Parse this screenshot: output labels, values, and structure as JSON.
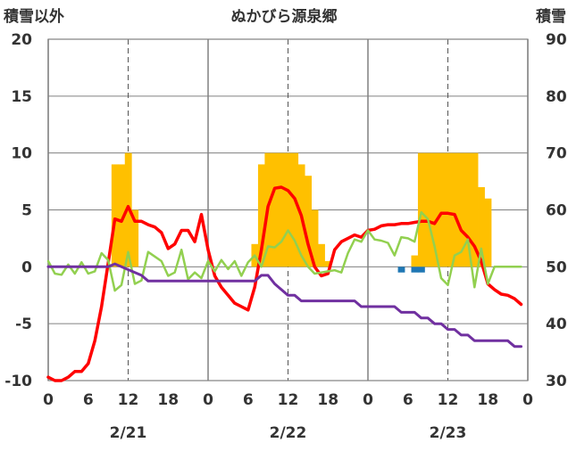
{
  "chart_data": {
    "type": "line",
    "title": "ぬかびら源泉郷",
    "ylabel_left": "積雪以外",
    "ylabel_right": "積雪",
    "ylim_left": [
      -10,
      20
    ],
    "ylim_right": [
      30,
      90
    ],
    "yticks_left": [
      "20",
      "15",
      "10",
      "5",
      "0",
      "-5",
      "-10"
    ],
    "yticks_right": [
      "90",
      "80",
      "70",
      "60",
      "50",
      "40",
      "30"
    ],
    "xlim_hours": [
      0,
      72
    ],
    "xtick_labels": [
      "0",
      "6",
      "12",
      "18",
      "0",
      "6",
      "12",
      "18",
      "0",
      "6",
      "12",
      "18",
      "0"
    ],
    "date_labels": [
      "2/21",
      "2/22",
      "2/23"
    ],
    "grid": true,
    "colors": {
      "snowfall": "#FFC000",
      "precip": "#1F77B4",
      "temperature": "#FF0000",
      "humidity_like": "#92D050",
      "snow_depth": "#7030A0",
      "grid_solid": "#808080",
      "grid_dashed": "#555555"
    },
    "series": [
      {
        "key": "snowfall",
        "type": "bar",
        "x": [
          10,
          11,
          12,
          13,
          31,
          32,
          33,
          34,
          35,
          36,
          37,
          38,
          39,
          40,
          41,
          42,
          55,
          56,
          57,
          58,
          59,
          60,
          61,
          62,
          63,
          64,
          65,
          66
        ],
        "values": [
          9,
          9,
          10,
          5,
          2,
          9,
          10,
          10,
          10,
          10,
          10,
          9,
          8,
          5,
          2,
          0.5,
          1,
          10,
          10,
          10,
          10,
          10,
          10,
          10,
          10,
          10,
          7,
          6
        ]
      },
      {
        "key": "precip",
        "type": "bar",
        "x": [
          53,
          55,
          56
        ],
        "values": [
          -0.5,
          -0.5,
          -0.5
        ]
      },
      {
        "key": "temperature",
        "type": "line",
        "x": [
          0,
          1,
          2,
          3,
          4,
          5,
          6,
          7,
          8,
          9,
          10,
          11,
          12,
          13,
          14,
          15,
          16,
          17,
          18,
          19,
          20,
          21,
          22,
          23,
          24,
          25,
          26,
          27,
          28,
          29,
          30,
          31,
          32,
          33,
          34,
          35,
          36,
          37,
          38,
          39,
          40,
          41,
          42,
          43,
          44,
          45,
          46,
          47,
          48,
          49,
          50,
          51,
          52,
          53,
          54,
          55,
          56,
          57,
          58,
          59,
          60,
          61,
          62,
          63,
          64,
          65,
          66,
          67,
          68,
          69,
          70,
          71
        ],
        "values": [
          -9.7,
          -10,
          -10,
          -9.7,
          -9.2,
          -9.2,
          -8.5,
          -6.5,
          -3.5,
          0.3,
          4.2,
          4,
          5.3,
          4,
          4,
          3.7,
          3.5,
          3,
          1.6,
          2,
          3.2,
          3.2,
          2.2,
          4.6,
          1.5,
          -0.8,
          -1.8,
          -2.5,
          -3.2,
          -3.5,
          -3.8,
          -1.8,
          1.5,
          5.3,
          6.9,
          7,
          6.7,
          6,
          4.5,
          2,
          0,
          -0.8,
          -0.6,
          1.5,
          2.2,
          2.5,
          2.8,
          2.6,
          3.2,
          3.3,
          3.6,
          3.7,
          3.7,
          3.8,
          3.8,
          3.9,
          4,
          4,
          3.8,
          4.7,
          4.7,
          4.6,
          3.2,
          2.6,
          1.8,
          0.5,
          -1.5,
          -2,
          -2.4,
          -2.5,
          -2.8,
          -3.3
        ]
      },
      {
        "key": "humidity_like",
        "type": "line",
        "x": [
          0,
          1,
          2,
          3,
          4,
          5,
          6,
          7,
          8,
          9,
          10,
          11,
          12,
          13,
          14,
          15,
          16,
          17,
          18,
          19,
          20,
          21,
          22,
          23,
          24,
          25,
          26,
          27,
          28,
          29,
          30,
          31,
          32,
          33,
          34,
          35,
          36,
          37,
          38,
          39,
          40,
          41,
          42,
          43,
          44,
          45,
          46,
          47,
          48,
          49,
          50,
          51,
          52,
          53,
          54,
          55,
          56,
          57,
          58,
          59,
          60,
          61,
          62,
          63,
          64,
          65,
          66,
          67,
          68,
          69,
          70,
          71
        ],
        "values": [
          0.5,
          -0.6,
          -0.7,
          0.2,
          -0.6,
          0.4,
          -0.6,
          -0.4,
          1.2,
          0.6,
          -2.1,
          -1.6,
          1.3,
          -1.5,
          -1.2,
          1.3,
          0.9,
          0.5,
          -0.8,
          -0.5,
          1.5,
          -1.1,
          -0.5,
          -1,
          0.5,
          -0.4,
          0.6,
          -0.2,
          0.5,
          -0.8,
          0.4,
          1,
          0,
          1.8,
          1.7,
          2.2,
          3.2,
          2.3,
          1,
          0,
          -0.6,
          -0.5,
          -0.4,
          -0.3,
          -0.5,
          1.2,
          2.4,
          2.2,
          3.2,
          2.4,
          2.3,
          2.1,
          1,
          2.6,
          2.5,
          2.2,
          4.8,
          4.2,
          1.8,
          -1,
          -1.6,
          1,
          1.3,
          2.4,
          -1.8,
          1.6,
          -1.5,
          0,
          0,
          0,
          0,
          0
        ],
        "values_len_note": ""
      },
      {
        "key": "snow_depth",
        "type": "line",
        "axis": "right",
        "x": [
          0,
          6,
          8,
          9,
          10,
          11,
          12,
          14,
          15,
          24,
          31,
          32,
          33,
          34,
          35,
          36,
          37,
          38,
          39,
          40,
          41,
          42,
          43,
          44,
          45,
          46,
          47,
          48,
          49,
          50,
          51,
          52,
          53,
          54,
          55,
          56,
          57,
          58,
          59,
          60,
          61,
          62,
          63,
          64,
          65,
          66,
          67,
          68,
          69,
          70,
          71
        ],
        "values": [
          50,
          50,
          50,
          50,
          50.5,
          50,
          49.5,
          48.5,
          47.5,
          47.5,
          47.5,
          48.5,
          48.5,
          47,
          46,
          45,
          45,
          44,
          44,
          44,
          44,
          44,
          44,
          44,
          44,
          44,
          43,
          43,
          43,
          43,
          43,
          43,
          42,
          42,
          42,
          41,
          41,
          40,
          40,
          39,
          39,
          38,
          38,
          37,
          37,
          37,
          37,
          37,
          37,
          36,
          36
        ]
      }
    ]
  }
}
